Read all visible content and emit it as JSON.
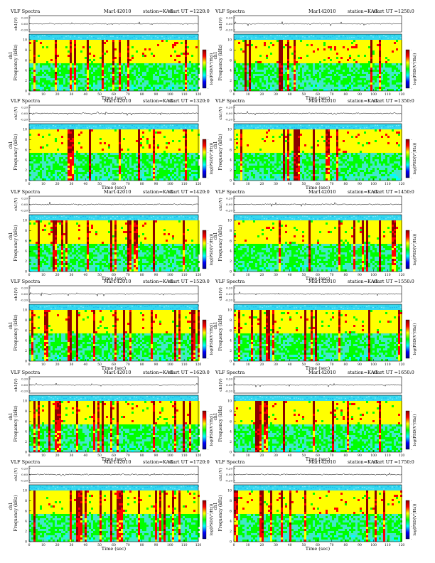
{
  "labels": {
    "title": "VLF Spectra",
    "date": "Mar142010",
    "station": "station=KAG",
    "start_ut_prefix": "start UT =",
    "wave_ylabel": "ch1(V)",
    "spec_ylabel_top": "ch1",
    "spec_ylabel": "Frequency (kHz)",
    "xlabel": "Time (sec)",
    "colorbar_label": "log(PSD(V²/Hz))"
  },
  "colors": {
    "spectrogram_scale": [
      "#00008b",
      "#0000ff",
      "#00ffff",
      "#00ff00",
      "#ffff00",
      "#ff0000",
      "#8b0000"
    ]
  },
  "chart_data": [
    {
      "type": "heatmap",
      "start_ut": "1220:0",
      "x_ticks": [
        "0",
        "10",
        "20",
        "30",
        "40",
        "50",
        "60",
        "70",
        "80",
        "90",
        "100",
        "110",
        "120"
      ],
      "y_ticks": [
        "0",
        "2",
        "4",
        "6",
        "8",
        "10"
      ],
      "wave_ticks": [
        "0.20",
        "0.00",
        "-0.20"
      ],
      "colorbar_ticks": [
        "-",
        "-",
        "-",
        "-"
      ],
      "xlim": [
        0,
        120
      ],
      "ylim": [
        0,
        10
      ]
    },
    {
      "type": "heatmap",
      "start_ut": "1250:0",
      "x_ticks": [
        "0",
        "10",
        "20",
        "30",
        "40",
        "50",
        "60",
        "70",
        "80",
        "90",
        "100",
        "110",
        "120"
      ],
      "y_ticks": [
        "0",
        "2",
        "4",
        "6",
        "8",
        "10"
      ],
      "wave_ticks": [
        "0.20",
        "0.00",
        "-0.20"
      ],
      "colorbar_ticks": [
        "-",
        "-",
        "-",
        "-"
      ],
      "xlim": [
        0,
        120
      ],
      "ylim": [
        0,
        10
      ]
    },
    {
      "type": "heatmap",
      "start_ut": "1320:0",
      "x_ticks": [
        "0",
        "10",
        "20",
        "30",
        "40",
        "50",
        "60",
        "70",
        "80",
        "90",
        "100",
        "110",
        "120"
      ],
      "y_ticks": [
        "0",
        "2",
        "4",
        "6",
        "8",
        "10"
      ],
      "wave_ticks": [
        "0.20",
        "0.00",
        "-0.20"
      ],
      "colorbar_ticks": [
        "-",
        "-",
        "-",
        "-"
      ],
      "xlim": [
        0,
        120
      ],
      "ylim": [
        0,
        10
      ]
    },
    {
      "type": "heatmap",
      "start_ut": "1350:0",
      "x_ticks": [
        "0",
        "10",
        "20",
        "30",
        "40",
        "50",
        "60",
        "70",
        "80",
        "90",
        "100",
        "110",
        "120"
      ],
      "y_ticks": [
        "0",
        "2",
        "4",
        "6",
        "8",
        "10"
      ],
      "wave_ticks": [
        "0.20",
        "0.00",
        "-0.20"
      ],
      "colorbar_ticks": [
        "-",
        "-",
        "-",
        "-"
      ],
      "xlim": [
        0,
        120
      ],
      "ylim": [
        0,
        10
      ]
    },
    {
      "type": "heatmap",
      "start_ut": "1420:0",
      "x_ticks": [
        "0",
        "10",
        "20",
        "30",
        "40",
        "50",
        "60",
        "70",
        "80",
        "90",
        "100",
        "110",
        "120"
      ],
      "y_ticks": [
        "0",
        "2",
        "4",
        "6",
        "8",
        "10"
      ],
      "wave_ticks": [
        "0.20",
        "0.00",
        "-0.20"
      ],
      "colorbar_ticks": [
        "-",
        "-",
        "-",
        "-"
      ],
      "xlim": [
        0,
        120
      ],
      "ylim": [
        0,
        10
      ]
    },
    {
      "type": "heatmap",
      "start_ut": "1450:0",
      "x_ticks": [
        "0",
        "10",
        "20",
        "30",
        "40",
        "50",
        "60",
        "70",
        "80",
        "90",
        "100",
        "110",
        "120"
      ],
      "y_ticks": [
        "0",
        "2",
        "4",
        "6",
        "8",
        "10"
      ],
      "wave_ticks": [
        "0.20",
        "0.00",
        "-0.20"
      ],
      "colorbar_ticks": [
        "-",
        "-",
        "-",
        "-"
      ],
      "xlim": [
        0,
        120
      ],
      "ylim": [
        0,
        10
      ]
    },
    {
      "type": "heatmap",
      "start_ut": "1520:0",
      "x_ticks": [
        "0",
        "10",
        "20",
        "30",
        "40",
        "50",
        "60",
        "70",
        "80",
        "90",
        "100",
        "110",
        "120"
      ],
      "y_ticks": [
        "0",
        "2",
        "4",
        "6",
        "8",
        "10"
      ],
      "wave_ticks": [
        "0.20",
        "0.00",
        "-0.20"
      ],
      "colorbar_ticks": [
        "-",
        "-",
        "-",
        "-"
      ],
      "xlim": [
        0,
        120
      ],
      "ylim": [
        0,
        10
      ]
    },
    {
      "type": "heatmap",
      "start_ut": "1550:0",
      "x_ticks": [
        "0",
        "10",
        "20",
        "30",
        "40",
        "50",
        "60",
        "70",
        "80",
        "90",
        "100",
        "110",
        "120"
      ],
      "y_ticks": [
        "0",
        "2",
        "4",
        "6",
        "8",
        "10"
      ],
      "wave_ticks": [
        "0.20",
        "0.00",
        "-0.20"
      ],
      "colorbar_ticks": [
        "-",
        "-",
        "-",
        "-"
      ],
      "xlim": [
        0,
        120
      ],
      "ylim": [
        0,
        10
      ]
    },
    {
      "type": "heatmap",
      "start_ut": "1620:0",
      "x_ticks": [
        "0",
        "10",
        "20",
        "30",
        "40",
        "50",
        "60",
        "70",
        "80",
        "90",
        "100",
        "110",
        "120"
      ],
      "y_ticks": [
        "0",
        "2",
        "4",
        "6",
        "8",
        "10"
      ],
      "wave_ticks": [
        "0.20",
        "0.00",
        "-0.20"
      ],
      "colorbar_ticks": [
        "-",
        "-",
        "-",
        "-"
      ],
      "xlim": [
        0,
        120
      ],
      "ylim": [
        0,
        10
      ]
    },
    {
      "type": "heatmap",
      "start_ut": "1650:0",
      "x_ticks": [
        "0",
        "10",
        "20",
        "30",
        "40",
        "50",
        "60",
        "70",
        "80",
        "90",
        "100",
        "110",
        "120"
      ],
      "y_ticks": [
        "0",
        "2",
        "4",
        "6",
        "8",
        "10"
      ],
      "wave_ticks": [
        "0.20",
        "0.00",
        "-0.20"
      ],
      "colorbar_ticks": [
        "-",
        "-",
        "-",
        "-"
      ],
      "xlim": [
        0,
        120
      ],
      "ylim": [
        0,
        10
      ]
    },
    {
      "type": "heatmap",
      "start_ut": "1720:0",
      "x_ticks": [
        "0",
        "10",
        "20",
        "30",
        "40",
        "50",
        "60",
        "70",
        "80",
        "90",
        "100",
        "110",
        "120"
      ],
      "y_ticks": [
        "0",
        "2",
        "4",
        "6",
        "8",
        "10"
      ],
      "wave_ticks": [
        "0.20",
        "0.00",
        "-0.20"
      ],
      "colorbar_ticks": [
        "-",
        "-",
        "-",
        "-"
      ],
      "xlim": [
        0,
        120
      ],
      "ylim": [
        0,
        10
      ]
    },
    {
      "type": "heatmap",
      "start_ut": "1750:0",
      "x_ticks": [
        "0",
        "10",
        "20",
        "30",
        "40",
        "50",
        "60",
        "70",
        "80",
        "90",
        "100",
        "110",
        "120"
      ],
      "y_ticks": [
        "0",
        "2",
        "4",
        "6",
        "8",
        "10"
      ],
      "wave_ticks": [
        "0.20",
        "0.00",
        "-0.20"
      ],
      "colorbar_ticks": [
        "-",
        "-",
        "-",
        "-"
      ],
      "xlim": [
        0,
        120
      ],
      "ylim": [
        0,
        10
      ]
    }
  ]
}
